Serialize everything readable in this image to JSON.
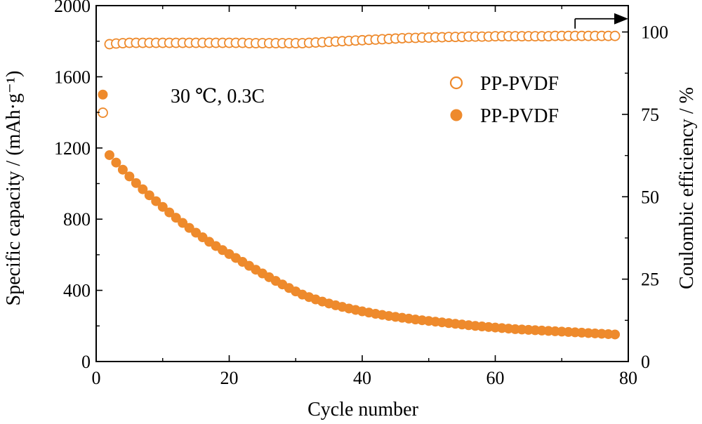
{
  "chart_data": {
    "type": "scatter",
    "x": [
      1,
      2,
      3,
      4,
      5,
      6,
      7,
      8,
      9,
      10,
      11,
      12,
      13,
      14,
      15,
      16,
      17,
      18,
      19,
      20,
      21,
      22,
      23,
      24,
      25,
      26,
      27,
      28,
      29,
      30,
      31,
      32,
      33,
      34,
      35,
      36,
      37,
      38,
      39,
      40,
      41,
      42,
      43,
      44,
      45,
      46,
      47,
      48,
      49,
      50,
      51,
      52,
      53,
      54,
      55,
      56,
      57,
      58,
      59,
      60,
      61,
      62,
      63,
      64,
      65,
      66,
      67,
      68,
      69,
      70,
      71,
      72,
      73,
      74,
      75,
      76,
      77,
      78
    ],
    "series": [
      {
        "name": "PP-PVDF",
        "axis": "left",
        "marker": "filled-circle",
        "color": "#ee8a2c",
        "values": [
          1500,
          1160,
          1118,
          1078,
          1040,
          1003,
          968,
          934,
          901,
          869,
          838,
          808,
          779,
          751,
          724,
          698,
          673,
          649,
          626,
          604,
          582,
          560,
          538,
          516,
          495,
          474,
          453,
          433,
          413,
          394,
          376,
          362,
          349,
          337,
          326,
          316,
          307,
          298,
          290,
          282,
          275,
          268,
          262,
          256,
          251,
          246,
          241,
          236,
          232,
          228,
          224,
          220,
          216,
          212,
          208,
          204,
          200,
          197,
          194,
          191,
          188,
          185,
          182,
          180,
          178,
          176,
          174,
          172,
          170,
          168,
          166,
          164,
          162,
          160,
          158,
          156,
          154,
          152
        ]
      },
      {
        "name": "PP-PVDF",
        "axis": "right",
        "marker": "open-circle",
        "color": "#ee8a2c",
        "values": [
          75.5,
          96.3,
          96.5,
          96.6,
          96.7,
          96.7,
          96.7,
          96.7,
          96.7,
          96.7,
          96.7,
          96.7,
          96.7,
          96.7,
          96.7,
          96.7,
          96.7,
          96.7,
          96.7,
          96.7,
          96.7,
          96.7,
          96.6,
          96.6,
          96.6,
          96.6,
          96.6,
          96.6,
          96.6,
          96.6,
          96.6,
          96.7,
          96.8,
          96.9,
          97.0,
          97.1,
          97.2,
          97.3,
          97.4,
          97.5,
          97.6,
          97.7,
          97.8,
          97.9,
          98.0,
          98.1,
          98.2,
          98.2,
          98.3,
          98.3,
          98.4,
          98.4,
          98.5,
          98.5,
          98.5,
          98.6,
          98.6,
          98.6,
          98.6,
          98.7,
          98.7,
          98.7,
          98.7,
          98.7,
          98.7,
          98.7,
          98.7,
          98.7,
          98.8,
          98.8,
          98.8,
          98.8,
          98.8,
          98.8,
          98.8,
          98.8,
          98.8,
          98.8
        ]
      }
    ],
    "xlabel": "Cycle number",
    "ylabel_left": "Specific capacity / (mAh·g⁻¹)",
    "ylabel_right": "Coulombic efficiency / %",
    "xlim": [
      0,
      80
    ],
    "ylim_left": [
      0,
      2000
    ],
    "ylim_right": [
      0,
      108
    ],
    "xticks": [
      0,
      20,
      40,
      60,
      80
    ],
    "yticks_left": [
      0,
      400,
      800,
      1200,
      1600,
      2000
    ],
    "yticks_right": [
      0,
      25,
      50,
      75,
      100
    ],
    "annotation": "30 ℃, 0.3C",
    "arrow": {
      "x_start": 72,
      "x_end": 80,
      "y": 104,
      "axis": "right",
      "direction": "right"
    },
    "legend": {
      "placement": "top-right",
      "entries": [
        "PP-PVDF",
        "PP-PVDF"
      ]
    },
    "grid": false
  }
}
